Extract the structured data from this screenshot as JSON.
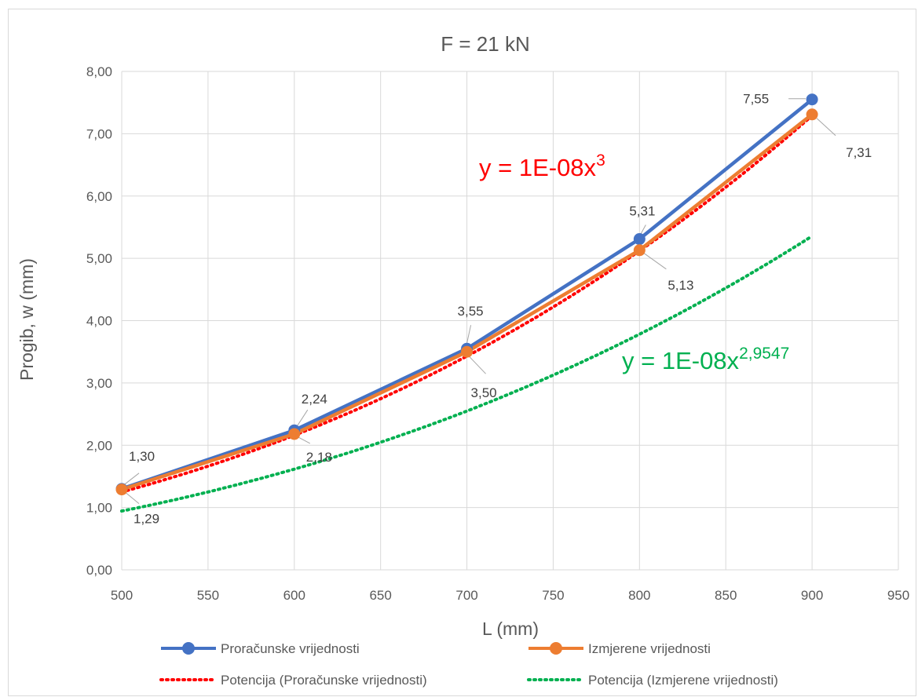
{
  "chart_data": {
    "type": "line",
    "title": "F = 21 kN",
    "xlabel": "L (mm)",
    "ylabel": "Progib, w (mm)",
    "xlim": [
      500,
      950
    ],
    "ylim": [
      0,
      8
    ],
    "x_ticks": [
      "500",
      "550",
      "600",
      "650",
      "700",
      "750",
      "800",
      "850",
      "900",
      "950"
    ],
    "y_ticks": [
      "0,00",
      "1,00",
      "2,00",
      "3,00",
      "4,00",
      "5,00",
      "6,00",
      "7,00",
      "8,00"
    ],
    "grid": true,
    "legend_position": "bottom",
    "x": [
      500,
      600,
      700,
      800,
      900
    ],
    "series": [
      {
        "name": "Proračunske vrijednosti",
        "color": "#4472c4",
        "values": [
          1.3,
          2.24,
          3.55,
          5.31,
          7.55
        ],
        "labels": [
          "1,30",
          "2,24",
          "3,55",
          "5,31",
          "7,55"
        ]
      },
      {
        "name": "Izmjerene vrijednosti",
        "color": "#ed7d31",
        "values": [
          1.29,
          2.18,
          3.5,
          5.13,
          7.31
        ],
        "labels": [
          "1,29",
          "2,18",
          "3,50",
          "5,13",
          "7,31"
        ]
      }
    ],
    "trendlines": [
      {
        "name": "Potencija (Proračunske vrijednosti)",
        "color": "#ff0000",
        "coef": 1e-08,
        "exponent": 3,
        "equation_base": "y = 1E-08x",
        "equation_exp": "3"
      },
      {
        "name": "Potencija (Izmjerene vrijednosti)",
        "color": "#00b050",
        "coef": 1e-08,
        "exponent": 2.9547,
        "equation_base": "y = 1E-08x",
        "equation_exp": "2,9547"
      }
    ]
  }
}
